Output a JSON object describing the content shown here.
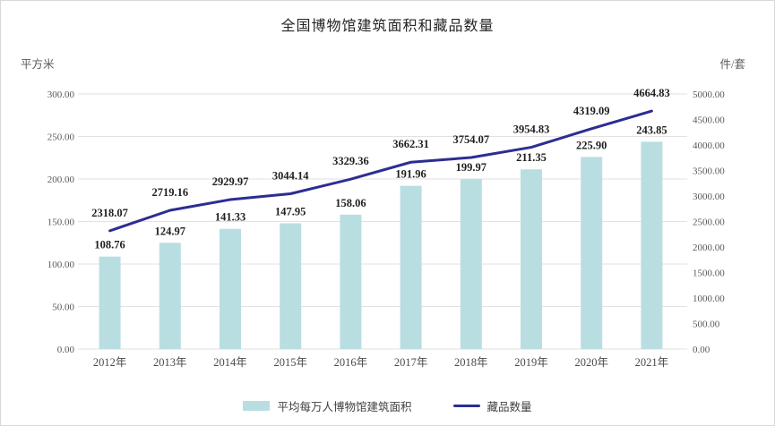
{
  "colors": {
    "bar": "#b9dee2",
    "line": "#2b2e91",
    "grid": "#e2e2e2",
    "tick_text": "#595959",
    "data_label_text": "#1f1f1f",
    "border": "#d9d9d9"
  },
  "chart_data": {
    "type": "bar+line combo",
    "title": "全国博物馆建筑面积和藏品数量",
    "categories": [
      "2012年",
      "2013年",
      "2014年",
      "2015年",
      "2016年",
      "2017年",
      "2018年",
      "2019年",
      "2020年",
      "2021年"
    ],
    "series": [
      {
        "name": "平均每万人博物馆建筑面积",
        "type": "bar",
        "axis": "left",
        "values": [
          108.76,
          124.97,
          141.33,
          147.95,
          158.06,
          191.96,
          199.97,
          211.35,
          225.9,
          243.85
        ]
      },
      {
        "name": "藏品数量",
        "type": "line",
        "axis": "right",
        "values": [
          2318.07,
          2719.16,
          2929.97,
          3044.14,
          3329.36,
          3662.31,
          3754.07,
          3954.83,
          4319.09,
          4664.83
        ]
      }
    ],
    "left_axis": {
      "unit": "平方米",
      "min": 0,
      "max": 300,
      "step": 50,
      "tick_format": "0.00"
    },
    "right_axis": {
      "unit": "件/套",
      "min": 0,
      "max": 5000,
      "step": 500,
      "tick_format": "0.00"
    },
    "grid": true,
    "data_labels": true,
    "legend_position": "bottom"
  }
}
